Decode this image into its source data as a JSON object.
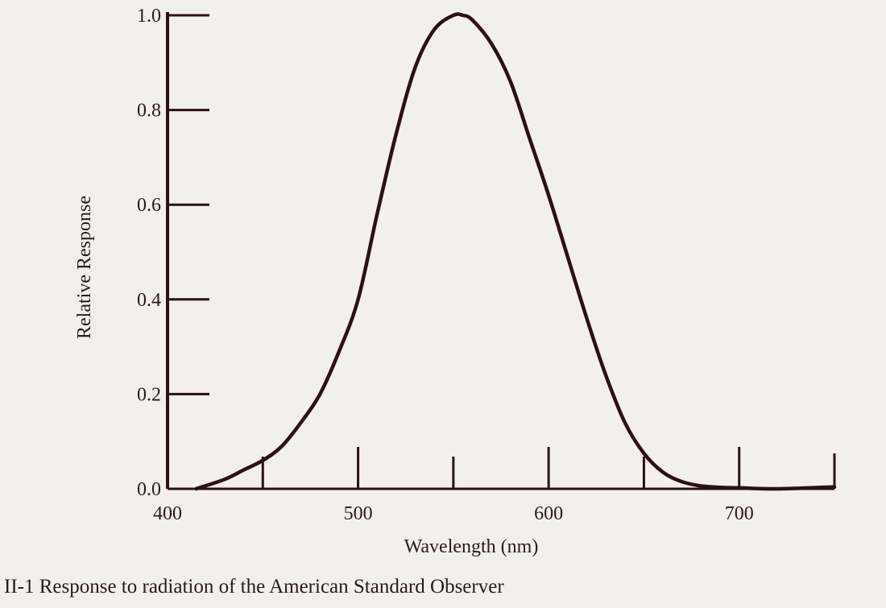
{
  "chart_data": {
    "type": "line",
    "xlabel": "Wavelength (nm)",
    "ylabel": "Relative Response",
    "caption": "II-1 Response to radiation of the American Standard Observer",
    "xlim": [
      400,
      750
    ],
    "ylim": [
      0,
      1.0
    ],
    "x_tick_labels": [
      "400",
      "500",
      "600",
      "700"
    ],
    "y_tick_labels": [
      "0.0",
      "0.2",
      "0.4",
      "0.6",
      "0.8",
      "1.0"
    ],
    "x_tick_marks": [
      450,
      500,
      550,
      600,
      650,
      700,
      750
    ],
    "grid": false,
    "colors": {
      "line": "#2a1212",
      "axis": "#2a1212",
      "background": "#f3f0ec"
    },
    "series": [
      {
        "x": [
          415,
          430,
          440,
          450,
          460,
          470,
          480,
          490,
          500,
          510,
          520,
          530,
          540,
          550,
          555,
          560,
          570,
          580,
          590,
          600,
          610,
          620,
          630,
          640,
          650,
          660,
          670,
          680,
          690,
          700,
          720,
          750
        ],
        "values": [
          0.0,
          0.02,
          0.04,
          0.06,
          0.09,
          0.14,
          0.2,
          0.29,
          0.4,
          0.58,
          0.75,
          0.89,
          0.97,
          1.0,
          1.0,
          0.99,
          0.94,
          0.86,
          0.74,
          0.62,
          0.49,
          0.36,
          0.24,
          0.14,
          0.075,
          0.035,
          0.015,
          0.006,
          0.003,
          0.002,
          0.0,
          0.004
        ]
      }
    ]
  }
}
